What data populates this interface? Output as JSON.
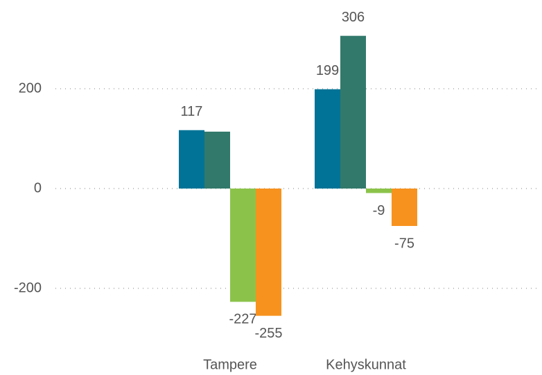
{
  "chart_data": {
    "type": "bar",
    "categories": [
      "Tampere",
      "Kehyskunnat"
    ],
    "series": [
      {
        "color": "#007396",
        "values": [
          117,
          199
        ],
        "value_labels": [
          "117",
          "199"
        ]
      },
      {
        "color": "#32796b",
        "values": [
          114,
          306
        ],
        "value_labels": [
          null,
          "306"
        ]
      },
      {
        "color": "#8bc34a",
        "values": [
          -227,
          -9
        ],
        "value_labels": [
          "-227",
          "-9"
        ]
      },
      {
        "color": "#f7921e",
        "values": [
          -255,
          -75
        ],
        "value_labels": [
          "-255",
          "-75"
        ]
      }
    ],
    "ylim": [
      -300,
      370
    ],
    "yticks": [
      -200,
      0,
      200
    ],
    "grid": true
  }
}
